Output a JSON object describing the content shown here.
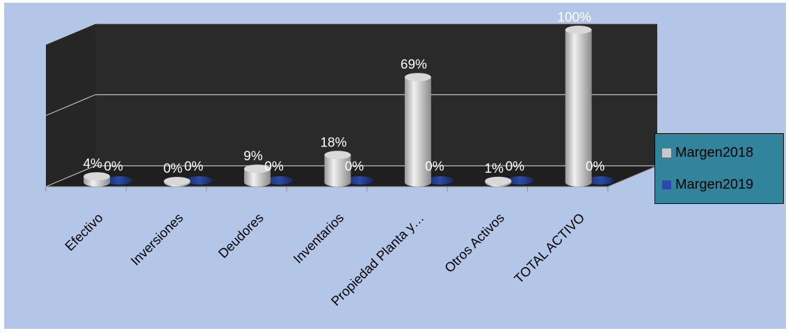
{
  "chart_data": {
    "type": "bar",
    "style": "3d-cylinder",
    "categories": [
      "Efectivo",
      "Inversiones",
      "Deudores",
      "Inventarios",
      "Propiedad Planta y…",
      "Otros Activos",
      "TOTAL ACTIVO"
    ],
    "series": [
      {
        "name": "Margen2018",
        "values": [
          4,
          0,
          9,
          18,
          69,
          1,
          100
        ],
        "labels": [
          "4%",
          "0%",
          "9%",
          "18%",
          "69%",
          "1%",
          "100%"
        ],
        "color": "#c8c8c8"
      },
      {
        "name": "Margen2019",
        "values": [
          0,
          0,
          0,
          0,
          0,
          0,
          0
        ],
        "labels": [
          "0%",
          "0%",
          "0%",
          "0%",
          "0%",
          "0%",
          "0%"
        ],
        "color": "#2a4aa8"
      }
    ],
    "ylim": [
      0,
      100
    ],
    "grid": true,
    "legend_position": "right",
    "colors": {
      "background": "#b3c6e7",
      "wall": "#2a2a2a",
      "floor": "#1f1f1f",
      "legend_background": "#31849b",
      "data_label": "#ffffff"
    }
  }
}
